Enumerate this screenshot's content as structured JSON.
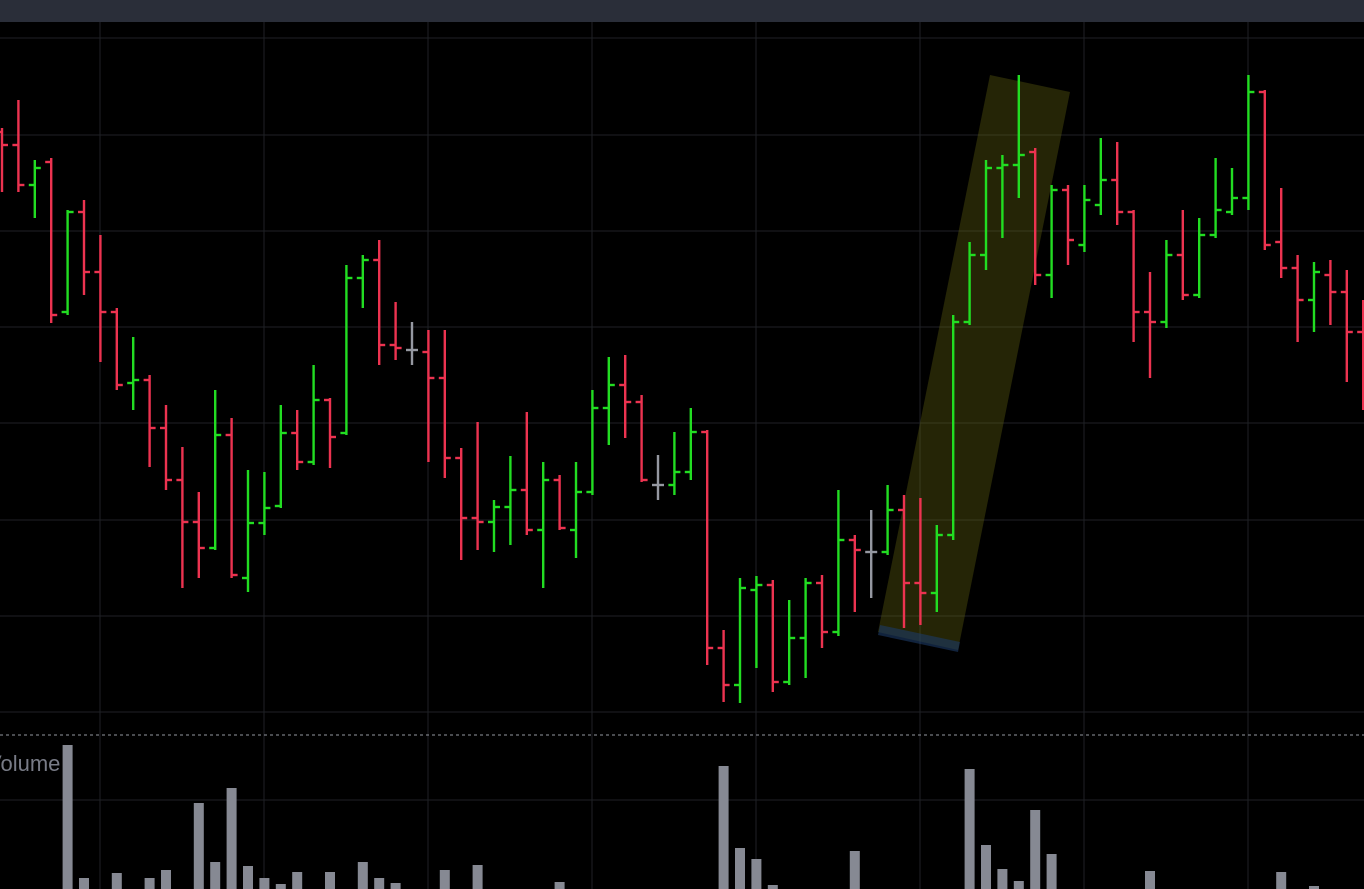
{
  "chart_data": [
    {
      "type": "ohlc",
      "ylim": [
        0,
        71.3
      ],
      "up_color": "#22dd22",
      "down_color": "#ec3350",
      "flat_color": "#9598a1",
      "open": [
        60.3,
        59.0,
        55.0,
        57.3,
        42.3,
        52.3,
        46.3,
        42.3,
        35.2,
        35.5,
        30.7,
        25.5,
        21.3,
        18.7,
        30.0,
        15.7,
        21.2,
        22.9,
        30.2,
        27.3,
        33.5,
        30.2,
        45.7,
        47.5,
        39.0,
        38.5,
        38.3,
        35.7,
        27.7,
        21.7,
        21.3,
        22.8,
        24.5,
        20.5,
        25.5,
        20.5,
        24.3,
        32.7,
        35.0,
        33.3,
        25.0,
        25.0,
        26.3,
        30.3,
        8.7,
        5.0,
        14.5,
        15.0,
        5.3,
        9.7,
        15.2,
        10.3,
        19.5,
        18.3,
        18.3,
        22.5,
        15.2,
        14.2,
        20.0,
        41.3,
        48.0,
        56.7,
        57.0,
        58.3,
        46.0,
        54.5,
        49.0,
        53.0,
        55.5,
        52.3,
        42.3,
        41.3,
        48.0,
        44.0,
        50.0,
        52.3,
        53.7,
        64.3,
        49.3,
        46.7,
        43.5,
        46.0,
        44.3,
        40.3
      ],
      "high": [
        60.7,
        63.5,
        57.5,
        57.7,
        52.5,
        53.5,
        50.0,
        42.7,
        39.8,
        36.0,
        33.0,
        28.8,
        24.3,
        34.5,
        31.7,
        26.5,
        26.3,
        33.0,
        32.5,
        37.0,
        33.7,
        47.0,
        48.0,
        49.5,
        43.3,
        41.3,
        40.5,
        40.5,
        28.7,
        31.3,
        23.5,
        27.9,
        32.3,
        27.3,
        26.0,
        27.3,
        34.5,
        37.8,
        38.0,
        34.0,
        28.0,
        30.3,
        32.7,
        30.5,
        10.5,
        15.7,
        15.9,
        15.5,
        13.5,
        15.7,
        16.0,
        24.5,
        20.0,
        22.5,
        25.0,
        24.0,
        23.7,
        21.0,
        42.0,
        49.3,
        57.5,
        58.0,
        66.0,
        58.7,
        55.0,
        55.0,
        55.0,
        59.7,
        59.3,
        52.5,
        46.3,
        49.5,
        52.5,
        51.7,
        57.7,
        56.7,
        66.0,
        64.5,
        54.7,
        48.0,
        47.3,
        47.5,
        46.5,
        43.5
      ],
      "low": [
        54.3,
        54.3,
        51.7,
        41.2,
        42.0,
        44.0,
        37.3,
        34.5,
        32.5,
        26.8,
        24.5,
        14.7,
        15.7,
        18.5,
        15.7,
        14.3,
        20.0,
        22.7,
        26.5,
        27.0,
        26.7,
        30.0,
        42.7,
        37.0,
        37.5,
        37.0,
        27.3,
        25.7,
        17.5,
        18.5,
        18.3,
        19.0,
        20.0,
        14.7,
        20.5,
        17.7,
        24.0,
        29.0,
        29.7,
        25.3,
        23.5,
        24.0,
        25.5,
        7.0,
        3.3,
        3.2,
        6.7,
        4.3,
        5.0,
        5.7,
        8.7,
        9.9,
        12.3,
        13.7,
        18.0,
        10.7,
        11.0,
        12.3,
        19.5,
        41.0,
        46.5,
        49.7,
        53.7,
        45.0,
        43.7,
        47.0,
        48.3,
        52.0,
        51.0,
        39.3,
        35.7,
        40.7,
        43.5,
        43.7,
        49.7,
        52.0,
        52.5,
        48.5,
        45.7,
        39.3,
        40.3,
        41.0,
        35.3,
        32.5
      ],
      "close": [
        59.0,
        55.0,
        56.7,
        42.0,
        52.3,
        46.3,
        42.3,
        35.0,
        35.5,
        30.7,
        25.5,
        21.3,
        18.7,
        30.0,
        16.0,
        21.2,
        22.7,
        30.2,
        27.3,
        33.5,
        29.8,
        45.7,
        47.5,
        39.0,
        38.7,
        38.5,
        35.7,
        27.7,
        21.7,
        21.3,
        22.8,
        24.5,
        20.5,
        25.5,
        20.7,
        24.3,
        32.7,
        35.0,
        33.3,
        25.5,
        25.0,
        26.3,
        30.3,
        8.7,
        5.0,
        14.7,
        15.0,
        5.3,
        9.7,
        15.2,
        10.3,
        19.5,
        18.5,
        18.3,
        22.5,
        15.2,
        14.2,
        20.0,
        41.3,
        48.0,
        56.7,
        57.0,
        58.0,
        46.0,
        54.5,
        49.5,
        53.5,
        55.5,
        52.3,
        42.3,
        41.3,
        48.0,
        44.0,
        50.0,
        52.5,
        53.7,
        64.3,
        49.0,
        46.7,
        43.5,
        46.3,
        44.3,
        40.3,
        38.3
      ]
    },
    {
      "type": "bar",
      "title": "Volume",
      "ylim": [
        0,
        150
      ],
      "color": "#868993",
      "values": [
        null,
        null,
        null,
        null,
        144,
        11,
        null,
        16,
        null,
        11,
        19,
        null,
        86,
        27,
        101,
        23,
        11,
        5,
        17,
        null,
        17,
        null,
        27,
        11,
        6,
        null,
        null,
        19,
        null,
        24,
        null,
        null,
        null,
        null,
        7,
        null,
        null,
        null,
        null,
        null,
        null,
        null,
        null,
        null,
        123,
        41,
        30,
        4,
        null,
        null,
        null,
        null,
        38,
        null,
        null,
        null,
        null,
        null,
        null,
        120,
        44,
        20,
        8,
        79,
        35,
        null,
        null,
        null,
        null,
        null,
        18,
        null,
        null,
        null,
        null,
        null,
        null,
        null,
        17,
        null,
        3,
        null,
        null,
        null
      ]
    }
  ]
}
